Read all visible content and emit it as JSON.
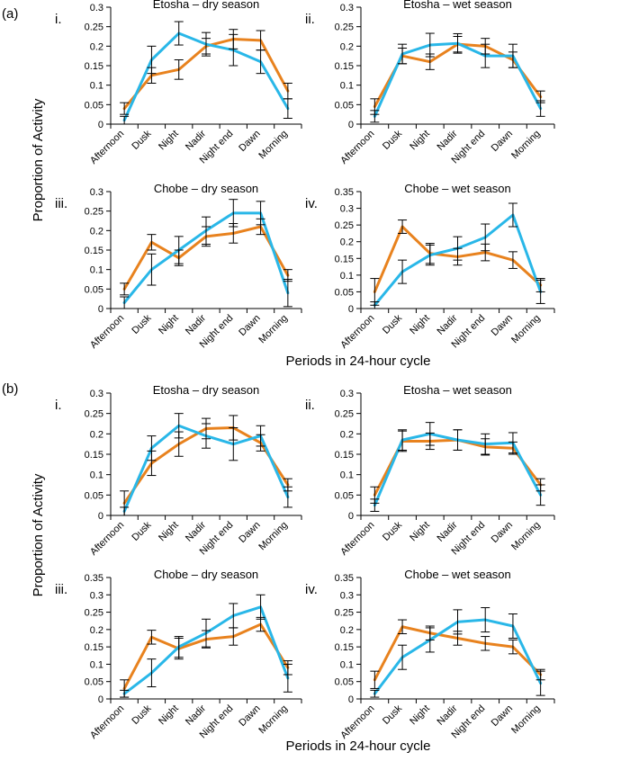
{
  "figure": {
    "panel_a_label": "(a)",
    "panel_b_label": "(b)",
    "ylabel": "Proportion of Activity",
    "xlabel": "Periods in 24-hour cycle",
    "series_colors": {
      "orange": "#e8821e",
      "blue": "#29b7e8"
    }
  },
  "chart_data": [
    {
      "type": "line",
      "group": "a",
      "roman": "i.",
      "title": "Etosha – dry season",
      "categories": [
        "Afternoon",
        "Dusk",
        "Night",
        "Nadir",
        "Night end",
        "Dawn",
        "Morning"
      ],
      "ylim": [
        0,
        0.3
      ],
      "yticks": [
        "0",
        "0.05",
        "0.1",
        "0.15",
        "0.2",
        "0.25",
        "0.3"
      ],
      "series": [
        {
          "name": "orange",
          "values": [
            0.04,
            0.125,
            0.14,
            0.2,
            0.218,
            0.215,
            0.085
          ],
          "errors": [
            0.015,
            0.02,
            0.025,
            0.02,
            0.025,
            0.025,
            0.02
          ]
        },
        {
          "name": "blue",
          "values": [
            0.01,
            0.165,
            0.233,
            0.205,
            0.19,
            0.16,
            0.04
          ],
          "errors": [
            0.01,
            0.035,
            0.03,
            0.03,
            0.04,
            0.03,
            0.025
          ]
        }
      ]
    },
    {
      "type": "line",
      "group": "a",
      "roman": "ii.",
      "title": "Etosha – wet season",
      "categories": [
        "Afternoon",
        "Dusk",
        "Night",
        "Nadir",
        "Night end",
        "Dawn",
        "Morning"
      ],
      "ylim": [
        0,
        0.3
      ],
      "yticks": [
        "0",
        "0.05",
        "0.1",
        "0.15",
        "0.2",
        "0.25",
        "0.3"
      ],
      "series": [
        {
          "name": "orange",
          "values": [
            0.045,
            0.175,
            0.16,
            0.205,
            0.2,
            0.165,
            0.07
          ],
          "errors": [
            0.02,
            0.02,
            0.02,
            0.02,
            0.02,
            0.02,
            0.015
          ]
        },
        {
          "name": "blue",
          "values": [
            0.02,
            0.18,
            0.203,
            0.207,
            0.175,
            0.175,
            0.04
          ],
          "errors": [
            0.015,
            0.025,
            0.03,
            0.025,
            0.03,
            0.03,
            0.02
          ]
        }
      ]
    },
    {
      "type": "line",
      "group": "a",
      "roman": "iii.",
      "title": "Chobe – dry season",
      "categories": [
        "Afternoon",
        "Dusk",
        "Night",
        "Nadir",
        "Night end",
        "Dawn",
        "Morning"
      ],
      "ylim": [
        0,
        0.3
      ],
      "yticks": [
        "0",
        "0.05",
        "0.1",
        "0.15",
        "0.2",
        "0.25",
        "0.3"
      ],
      "series": [
        {
          "name": "orange",
          "values": [
            0.05,
            0.17,
            0.13,
            0.185,
            0.193,
            0.21,
            0.085
          ],
          "errors": [
            0.015,
            0.02,
            0.02,
            0.025,
            0.025,
            0.02,
            0.015
          ]
        },
        {
          "name": "blue",
          "values": [
            0.015,
            0.1,
            0.15,
            0.2,
            0.245,
            0.245,
            0.04
          ],
          "errors": [
            0.015,
            0.04,
            0.035,
            0.035,
            0.035,
            0.03,
            0.035
          ]
        }
      ]
    },
    {
      "type": "line",
      "group": "a",
      "roman": "iv.",
      "title": "Chobe – wet season",
      "categories": [
        "Afternoon",
        "Dusk",
        "Night",
        "Nadir",
        "Night end",
        "Dawn",
        "Morning"
      ],
      "ylim": [
        0,
        0.35
      ],
      "yticks": [
        "0",
        "0.05",
        "0.1",
        "0.15",
        "0.2",
        "0.25",
        "0.3",
        "0.35"
      ],
      "series": [
        {
          "name": "orange",
          "values": [
            0.05,
            0.245,
            0.165,
            0.155,
            0.168,
            0.145,
            0.07
          ],
          "errors": [
            0.04,
            0.02,
            0.03,
            0.025,
            0.025,
            0.025,
            0.02
          ]
        },
        {
          "name": "blue",
          "values": [
            0.01,
            0.11,
            0.16,
            0.18,
            0.213,
            0.28,
            0.05
          ],
          "errors": [
            0.01,
            0.035,
            0.03,
            0.035,
            0.04,
            0.035,
            0.035
          ]
        }
      ]
    },
    {
      "type": "line",
      "group": "b",
      "roman": "i.",
      "title": "Etosha – dry season",
      "categories": [
        "Afternoon",
        "Dusk",
        "Night",
        "Nadir",
        "Night end",
        "Dawn",
        "Morning"
      ],
      "ylim": [
        0,
        0.3
      ],
      "yticks": [
        "0",
        "0.05",
        "0.1",
        "0.15",
        "0.2",
        "0.25",
        "0.3"
      ],
      "series": [
        {
          "name": "orange",
          "values": [
            0.03,
            0.128,
            0.175,
            0.213,
            0.215,
            0.178,
            0.075
          ],
          "errors": [
            0.03,
            0.03,
            0.03,
            0.025,
            0.03,
            0.02,
            0.015
          ]
        },
        {
          "name": "blue",
          "values": [
            0.01,
            0.165,
            0.22,
            0.195,
            0.175,
            0.195,
            0.045
          ],
          "errors": [
            0.01,
            0.03,
            0.03,
            0.03,
            0.04,
            0.025,
            0.025
          ]
        }
      ]
    },
    {
      "type": "line",
      "group": "b",
      "roman": "ii.",
      "title": "Etosha – wet season",
      "categories": [
        "Afternoon",
        "Dusk",
        "Night",
        "Nadir",
        "Night end",
        "Dawn",
        "Morning"
      ],
      "ylim": [
        0,
        0.3
      ],
      "yticks": [
        "0",
        "0.05",
        "0.1",
        "0.15",
        "0.2",
        "0.25",
        "0.3"
      ],
      "series": [
        {
          "name": "orange",
          "values": [
            0.05,
            0.182,
            0.182,
            0.185,
            0.168,
            0.165,
            0.075
          ],
          "errors": [
            0.02,
            0.025,
            0.02,
            0.025,
            0.02,
            0.015,
            0.015
          ]
        },
        {
          "name": "blue",
          "values": [
            0.025,
            0.185,
            0.2,
            0.185,
            0.175,
            0.178,
            0.05
          ],
          "errors": [
            0.015,
            0.025,
            0.028,
            0.025,
            0.025,
            0.025,
            0.025
          ]
        }
      ]
    },
    {
      "type": "line",
      "group": "b",
      "roman": "iii.",
      "title": "Chobe – dry season",
      "categories": [
        "Afternoon",
        "Dusk",
        "Night",
        "Nadir",
        "Night end",
        "Dawn",
        "Morning"
      ],
      "ylim": [
        0,
        0.35
      ],
      "yticks": [
        "0",
        "0.05",
        "0.1",
        "0.15",
        "0.2",
        "0.25",
        "0.3",
        "0.35"
      ],
      "series": [
        {
          "name": "orange",
          "values": [
            0.03,
            0.178,
            0.145,
            0.172,
            0.18,
            0.215,
            0.09
          ],
          "errors": [
            0.025,
            0.02,
            0.03,
            0.025,
            0.025,
            0.02,
            0.02
          ]
        },
        {
          "name": "blue",
          "values": [
            0.015,
            0.075,
            0.15,
            0.19,
            0.24,
            0.265,
            0.06
          ],
          "errors": [
            0.01,
            0.04,
            0.03,
            0.04,
            0.035,
            0.035,
            0.04
          ]
        }
      ]
    },
    {
      "type": "line",
      "group": "b",
      "roman": "iv.",
      "title": "Chobe – wet season",
      "categories": [
        "Afternoon",
        "Dusk",
        "Night",
        "Nadir",
        "Night end",
        "Dawn",
        "Morning"
      ],
      "ylim": [
        0,
        0.35
      ],
      "yticks": [
        "0",
        "0.05",
        "0.1",
        "0.15",
        "0.2",
        "0.25",
        "0.3",
        "0.35"
      ],
      "series": [
        {
          "name": "orange",
          "values": [
            0.055,
            0.208,
            0.19,
            0.175,
            0.16,
            0.15,
            0.07
          ],
          "errors": [
            0.025,
            0.02,
            0.02,
            0.02,
            0.02,
            0.02,
            0.015
          ]
        },
        {
          "name": "blue",
          "values": [
            0.015,
            0.12,
            0.17,
            0.222,
            0.228,
            0.21,
            0.045
          ],
          "errors": [
            0.01,
            0.035,
            0.035,
            0.035,
            0.035,
            0.035,
            0.035
          ]
        }
      ]
    }
  ]
}
